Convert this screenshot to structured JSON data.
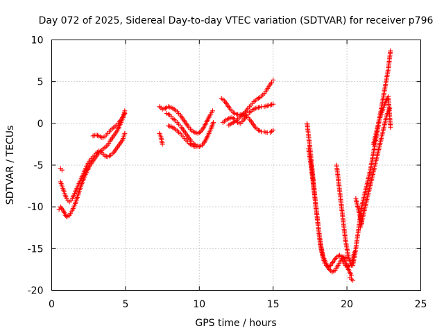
{
  "chart_data": {
    "type": "scatter",
    "title": "Day 072 of 2025, Sidereal Day-to-day VTEC variation (SDTVAR) for receiver p796",
    "xlabel": "GPS time / hours",
    "ylabel": "SDTVAR / TECUs",
    "xlim": [
      0,
      25
    ],
    "ylim": [
      -20,
      10
    ],
    "xticks": [
      0,
      5,
      10,
      15,
      20,
      25
    ],
    "yticks": [
      -20,
      -15,
      -10,
      -5,
      0,
      5,
      10
    ],
    "grid": true,
    "legend": "none",
    "marker": "plus",
    "color": "#ff0000",
    "series": [
      {
        "x": [
          0.5,
          0.6,
          0.8,
          1.0,
          1.2,
          1.4,
          1.6,
          1.8,
          2.0,
          2.2,
          2.4,
          2.6,
          2.8,
          3.0,
          3.2,
          3.4,
          3.6,
          3.8,
          4.0,
          4.2,
          4.4,
          4.6,
          4.8,
          4.95
        ],
        "y": [
          -10.3,
          -10.0,
          -10.5,
          -11.2,
          -11.0,
          -10.4,
          -9.6,
          -8.5,
          -7.4,
          -6.5,
          -5.7,
          -5.0,
          -4.5,
          -4.0,
          -3.5,
          -3.2,
          -2.9,
          -2.6,
          -2.0,
          -1.5,
          -1.0,
          -0.3,
          0.5,
          1.5
        ]
      },
      {
        "x": [
          0.6,
          0.8,
          1.0,
          1.2,
          1.4,
          1.6,
          1.8,
          2.0,
          2.2,
          2.4,
          2.6,
          2.8,
          3.0,
          3.2,
          3.4,
          3.6,
          3.8,
          4.0,
          4.2,
          4.4,
          4.6,
          4.8,
          4.95
        ],
        "y": [
          -7.0,
          -8.0,
          -9.0,
          -9.4,
          -9.0,
          -8.2,
          -7.4,
          -6.6,
          -5.8,
          -5.0,
          -4.4,
          -4.0,
          -3.6,
          -3.3,
          -3.5,
          -3.9,
          -4.0,
          -3.8,
          -3.5,
          -3.0,
          -2.5,
          -2.0,
          -1.2
        ]
      },
      {
        "x": [
          0.6,
          0.7
        ],
        "y": [
          -5.4,
          -5.6
        ]
      },
      {
        "x": [
          2.8,
          3.0,
          3.2,
          3.4,
          3.6,
          3.8,
          4.0,
          4.2,
          4.4,
          4.6,
          4.8,
          4.95
        ],
        "y": [
          -1.5,
          -1.4,
          -1.5,
          -1.7,
          -1.6,
          -1.2,
          -0.8,
          -0.5,
          -0.2,
          0.2,
          0.7,
          1.2
        ]
      },
      {
        "x": [
          7.3,
          7.5,
          7.7,
          7.9,
          8.1,
          8.3,
          8.5,
          8.7,
          8.9,
          9.1,
          9.3,
          9.5,
          9.7,
          9.9,
          10.1,
          10.3,
          10.5,
          10.7,
          10.9
        ],
        "y": [
          2.0,
          1.7,
          1.8,
          2.0,
          1.9,
          1.7,
          1.4,
          1.0,
          0.5,
          0.0,
          -0.5,
          -0.9,
          -1.1,
          -1.2,
          -1.0,
          -0.5,
          0.2,
          0.9,
          1.5
        ]
      },
      {
        "x": [
          7.8,
          8.0,
          8.2,
          8.4,
          8.6,
          8.8,
          9.0,
          9.2,
          9.4,
          9.6,
          9.8,
          10.0,
          10.2,
          10.4,
          10.6,
          10.8,
          10.95
        ],
        "y": [
          1.2,
          1.0,
          0.6,
          0.3,
          -0.1,
          -0.5,
          -1.0,
          -1.5,
          -2.0,
          -2.4,
          -2.7,
          -2.8,
          -2.6,
          -2.1,
          -1.4,
          -0.6,
          0.1
        ]
      },
      {
        "x": [
          7.9,
          8.1,
          8.3,
          8.5,
          8.7,
          8.9,
          9.1,
          9.3,
          9.5,
          9.7,
          9.9
        ],
        "y": [
          -0.3,
          -0.4,
          -0.6,
          -0.9,
          -1.2,
          -1.6,
          -2.0,
          -2.4,
          -2.6,
          -2.8,
          -2.7
        ]
      },
      {
        "x": [
          7.3,
          7.4,
          7.5
        ],
        "y": [
          -1.2,
          -1.6,
          -2.5
        ]
      },
      {
        "x": [
          11.5,
          11.7,
          11.9,
          12.1,
          12.3,
          12.5,
          12.7,
          12.9,
          13.1,
          13.3,
          13.5,
          13.7,
          13.9,
          14.1,
          14.3,
          14.5,
          14.7,
          14.9,
          15.0
        ],
        "y": [
          3.0,
          2.7,
          2.2,
          1.7,
          1.3,
          1.1,
          1.0,
          1.1,
          1.3,
          1.8,
          2.2,
          2.6,
          2.9,
          3.1,
          3.4,
          3.8,
          4.4,
          4.9,
          5.2
        ]
      },
      {
        "x": [
          11.6,
          11.8,
          12.0,
          12.2,
          12.4,
          12.6,
          12.8,
          13.0,
          13.2,
          13.4,
          13.6,
          13.8,
          14.0,
          14.2,
          14.4,
          14.6,
          14.8,
          15.0
        ],
        "y": [
          0.1,
          0.4,
          0.6,
          0.7,
          0.5,
          0.1,
          0.0,
          0.4,
          0.9,
          1.3,
          1.6,
          1.8,
          1.9,
          2.0,
          2.0,
          2.1,
          2.2,
          2.3
        ]
      },
      {
        "x": [
          12.0,
          12.2,
          12.4,
          12.6,
          12.8,
          13.0,
          13.2,
          13.4,
          13.6,
          13.8,
          14.0,
          14.2,
          14.4,
          14.6,
          14.8,
          15.0
        ],
        "y": [
          -0.2,
          0.0,
          0.2,
          0.5,
          0.8,
          1.0,
          0.9,
          0.5,
          0.0,
          -0.5,
          -0.8,
          -1.0,
          -1.0,
          -1.1,
          -1.1,
          -0.8
        ]
      },
      {
        "x": [
          17.3,
          17.5,
          17.7,
          17.9,
          18.1,
          18.3,
          18.5,
          18.7,
          18.9,
          19.1,
          19.3,
          19.5,
          19.7,
          19.9,
          20.1,
          20.3
        ],
        "y": [
          0.0,
          -3.0,
          -6.5,
          -10.0,
          -13.0,
          -15.5,
          -16.8,
          -17.2,
          -17.0,
          -16.5,
          -16.0,
          -15.8,
          -16.0,
          -16.6,
          -17.5,
          -18.2
        ]
      },
      {
        "x": [
          17.4,
          17.6,
          17.8,
          18.0,
          18.2,
          18.4,
          18.6,
          18.8,
          19.0,
          19.2,
          19.4,
          19.6,
          19.8,
          20.0
        ],
        "y": [
          -3.0,
          -5.5,
          -8.5,
          -11.5,
          -14.5,
          -16.0,
          -16.8,
          -17.5,
          -17.8,
          -17.6,
          -17.0,
          -16.4,
          -16.0,
          -16.2
        ]
      },
      {
        "x": [
          19.3,
          19.5,
          19.7,
          19.9,
          20.1,
          20.3,
          20.5
        ],
        "y": [
          -5.0,
          -8.0,
          -11.0,
          -14.0,
          -16.0,
          -17.0,
          -15.5
        ]
      },
      {
        "x": [
          19.6,
          19.8,
          20.0,
          20.2
        ],
        "y": [
          -16.0,
          -16.8,
          -17.2,
          -17.0
        ]
      },
      {
        "x": [
          20.4,
          20.6,
          20.8,
          21.0,
          21.2,
          21.4,
          21.6,
          21.8,
          22.0,
          22.2,
          22.4,
          22.6,
          22.8,
          22.95
        ],
        "y": [
          -17.0,
          -15.0,
          -12.5,
          -10.0,
          -8.5,
          -7.0,
          -5.5,
          -3.5,
          -1.5,
          0.5,
          2.5,
          4.5,
          6.5,
          8.7
        ]
      },
      {
        "x": [
          20.9,
          21.1,
          21.3,
          21.5,
          21.7,
          21.9,
          22.1,
          22.3,
          22.5,
          22.7,
          22.9
        ],
        "y": [
          -12.5,
          -11.0,
          -9.5,
          -8.0,
          -6.5,
          -5.0,
          -3.5,
          -2.0,
          -0.5,
          1.0,
          1.8
        ]
      },
      {
        "x": [
          21.8,
          22.0,
          22.2,
          22.4,
          22.6,
          22.8,
          22.95
        ],
        "y": [
          -2.5,
          -1.0,
          0.5,
          1.5,
          2.5,
          3.2,
          -0.5
        ]
      },
      {
        "x": [
          20.6,
          20.8,
          21.0
        ],
        "y": [
          -9.0,
          -10.5,
          -12.0
        ]
      },
      {
        "x": [
          20.2,
          20.4
        ],
        "y": [
          -18.5,
          -18.8
        ]
      }
    ]
  }
}
